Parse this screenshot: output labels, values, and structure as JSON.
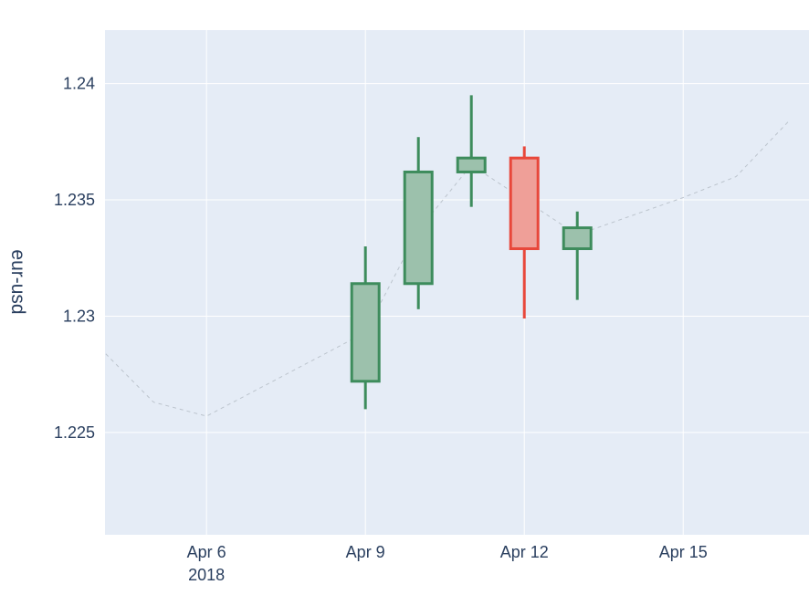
{
  "chart_data": {
    "type": "candlestick",
    "ylabel": "eur-usd",
    "xlim": [
      "2018-04-04T02:00",
      "2018-04-17T09:00"
    ],
    "ylim": [
      1.2206,
      1.2423
    ],
    "x_ticks": [
      {
        "date": "2018-04-06",
        "label": "Apr 6",
        "sublabel": "2018"
      },
      {
        "date": "2018-04-09",
        "label": "Apr 9"
      },
      {
        "date": "2018-04-12",
        "label": "Apr 12"
      },
      {
        "date": "2018-04-15",
        "label": "Apr 15"
      }
    ],
    "y_ticks": [
      {
        "value": 1.225,
        "label": "1.225"
      },
      {
        "value": 1.23,
        "label": "1.23"
      },
      {
        "value": 1.235,
        "label": "1.235"
      },
      {
        "value": 1.24,
        "label": "1.24"
      }
    ],
    "grid": true,
    "candles": [
      {
        "date": "2018-04-09",
        "open": 1.2272,
        "high": 1.233,
        "low": 1.226,
        "close": 1.2314
      },
      {
        "date": "2018-04-10",
        "open": 1.2314,
        "high": 1.2377,
        "low": 1.2303,
        "close": 1.2362
      },
      {
        "date": "2018-04-11",
        "open": 1.2362,
        "high": 1.2395,
        "low": 1.2347,
        "close": 1.2368
      },
      {
        "date": "2018-04-12",
        "open": 1.2368,
        "high": 1.2373,
        "low": 1.2299,
        "close": 1.2329
      },
      {
        "date": "2018-04-13",
        "open": 1.2329,
        "high": 1.2345,
        "low": 1.2307,
        "close": 1.2338
      }
    ],
    "line": {
      "style": "dashed",
      "x": [
        "2018-04-04",
        "2018-04-05",
        "2018-04-06",
        "2018-04-07",
        "2018-04-08",
        "2018-04-09",
        "2018-04-10",
        "2018-04-11",
        "2018-04-12",
        "2018-04-13",
        "2018-04-14",
        "2018-04-15",
        "2018-04-16",
        "2018-04-17"
      ],
      "y": [
        1.2286,
        1.2263,
        1.2257,
        1.2269,
        1.2281,
        1.2293,
        1.2337,
        1.2365,
        1.235,
        1.2335,
        1.2343,
        1.2351,
        1.236,
        1.2384
      ]
    },
    "colors": {
      "increasing": "#3d8c5c",
      "increasing_fill": "#9cc1ac",
      "decreasing": "#e8473a",
      "decreasing_fill": "#ef9f98",
      "line": "#bcc4cd",
      "plot_bg": "#e5ecf6",
      "grid": "#ffffff"
    }
  }
}
